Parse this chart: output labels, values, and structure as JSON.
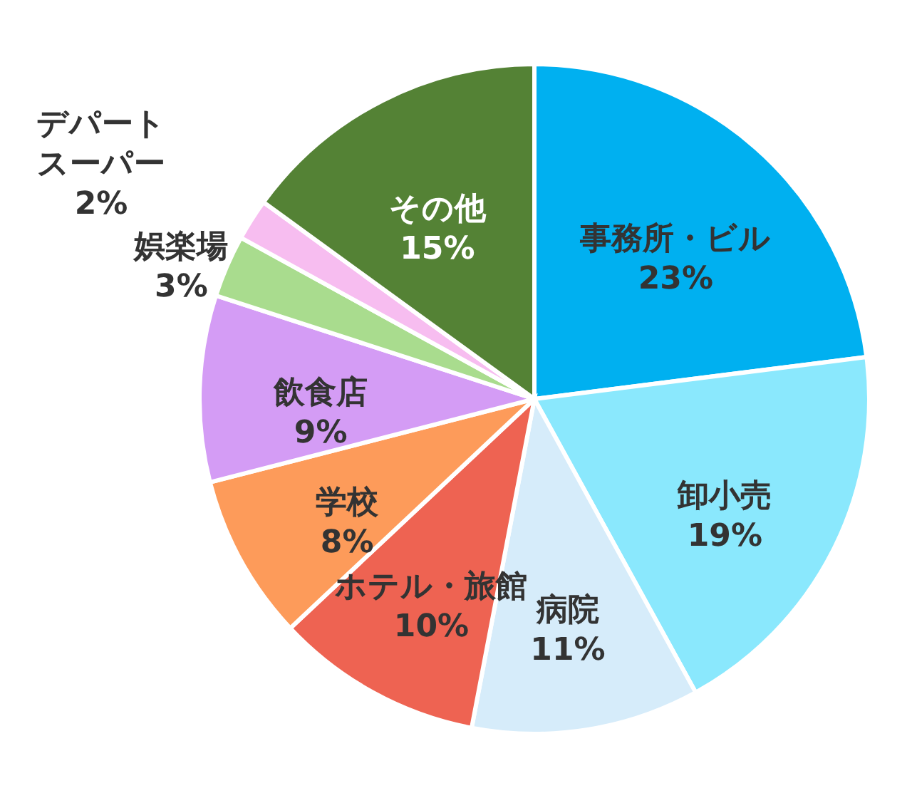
{
  "chart_data": {
    "type": "pie",
    "categories": [
      "事務所・ビル",
      "卸小売",
      "病院",
      "ホテル・旅館",
      "学校",
      "飲食店",
      "娯楽場",
      "デパートスーパー",
      "その他"
    ],
    "values": [
      23,
      19,
      11,
      10,
      8,
      9,
      3,
      2,
      15
    ],
    "value_labels": [
      "23%",
      "19%",
      "11%",
      "10%",
      "8%",
      "9%",
      "3%",
      "2%",
      "15%"
    ],
    "colors": [
      "#00b0f0",
      "#8ae8fd",
      "#d6ecfa",
      "#ee6352",
      "#fd9b5a",
      "#d49cf5",
      "#a9dc8e",
      "#f7bdf0",
      "#548235"
    ],
    "legend": false
  }
}
